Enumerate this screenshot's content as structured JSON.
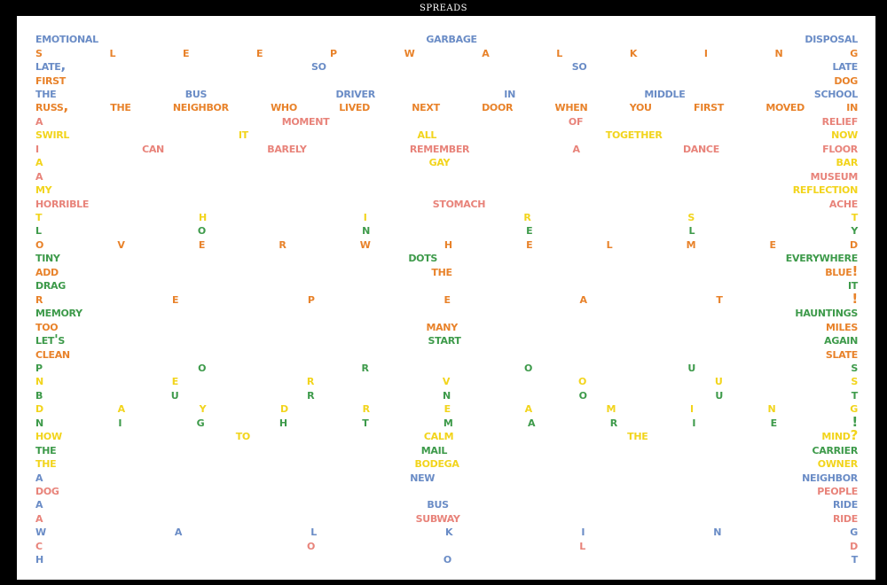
{
  "title": "SPREADS",
  "palette": {
    "blue": "#6a8cc6",
    "orange": "#e8822a",
    "salmon": "#e8837a",
    "yellow": "#f2d41c",
    "green": "#3d9a4a"
  },
  "lines": [
    {
      "color": "blue",
      "words": [
        "emotional",
        "garbage",
        "disposal"
      ]
    },
    {
      "color": "orange",
      "words": [
        "S",
        "L",
        "e",
        "e",
        "P",
        "W",
        "a",
        "L",
        "K",
        "I",
        "n",
        "G"
      ]
    },
    {
      "color": "blue",
      "words": [
        "LATE,",
        "SO",
        "SO",
        "LATE"
      ]
    },
    {
      "color": "orange",
      "words": [
        "FIRST",
        "DOG"
      ]
    },
    {
      "color": "blue",
      "words": [
        "THE",
        "BUS",
        "Driver",
        "In",
        "MIDDLE",
        "SCHOOL"
      ]
    },
    {
      "color": "orange",
      "words": [
        "RUSS,",
        "THE",
        "neighbor",
        "WHO",
        "LIVED",
        "NEXT",
        "DOOR",
        "WHEN",
        "YOU",
        "FIRST",
        "MOVED",
        "IN"
      ]
    },
    {
      "color": "salmon",
      "words": [
        "a",
        "moment",
        "OF",
        "relief"
      ]
    },
    {
      "color": "yellow",
      "words": [
        "SWIRL",
        "IT",
        "ALL",
        "TOGETHER",
        "NOW"
      ]
    },
    {
      "color": "salmon",
      "words": [
        "I",
        "can",
        "BARELY",
        "remember",
        "a",
        "Dance",
        "FLOOR"
      ]
    },
    {
      "color": "yellow",
      "words": [
        "a",
        "GAY",
        "BAR"
      ]
    },
    {
      "color": "salmon",
      "words": [
        "a",
        "museum"
      ]
    },
    {
      "color": "yellow",
      "words": [
        "MY",
        "reflection"
      ]
    },
    {
      "color": "salmon",
      "words": [
        "HORRIBLE",
        "STOMACH",
        "ACHE"
      ]
    },
    {
      "color": "yellow",
      "words": [
        "T",
        "H",
        "I",
        "R",
        "S",
        "T"
      ]
    },
    {
      "color": "green",
      "words": [
        "L",
        "O",
        "N",
        "E",
        "L",
        "Y"
      ]
    },
    {
      "color": "orange",
      "words": [
        "O",
        "V",
        "e",
        "R",
        "W",
        "H",
        "E",
        "L",
        "M",
        "e",
        "D"
      ]
    },
    {
      "color": "green",
      "words": [
        "TINY",
        "DOTS",
        "everywhere"
      ]
    },
    {
      "color": "orange",
      "words": [
        "ADD",
        "THE",
        "BLUE!"
      ]
    },
    {
      "color": "green",
      "words": [
        "DRAG",
        "IT"
      ]
    },
    {
      "color": "orange",
      "words": [
        "R",
        "e",
        "P",
        "E",
        "a",
        "T",
        "!"
      ]
    },
    {
      "color": "green",
      "words": [
        "memory",
        "HAUNTINGS"
      ]
    },
    {
      "color": "orange",
      "words": [
        "TOO",
        "many",
        "miles"
      ]
    },
    {
      "color": "green",
      "words": [
        "LET'S",
        "START",
        "again"
      ]
    },
    {
      "color": "orange",
      "words": [
        "CLEAN",
        "SLATE"
      ]
    },
    {
      "color": "green",
      "words": [
        "P",
        "O",
        "R",
        "O",
        "U",
        "S"
      ]
    },
    {
      "color": "yellow",
      "words": [
        "n",
        "e",
        "r",
        "V",
        "O",
        "U",
        "S"
      ]
    },
    {
      "color": "green",
      "words": [
        "B",
        "U",
        "R",
        "N",
        "O",
        "U",
        "T"
      ]
    },
    {
      "color": "yellow",
      "words": [
        "D",
        "a",
        "Y",
        "D",
        "R",
        "E",
        "a",
        "M",
        "I",
        "N",
        "G"
      ]
    },
    {
      "color": "green",
      "words": [
        "N",
        "I",
        "G",
        "H",
        "T",
        "M",
        "a",
        "R",
        "I",
        "E",
        "!"
      ]
    },
    {
      "color": "yellow",
      "words": [
        "HOW",
        "TO",
        "Calm",
        "THE",
        "mind?"
      ]
    },
    {
      "color": "green",
      "words": [
        "THE",
        "mail",
        "carrier"
      ]
    },
    {
      "color": "yellow",
      "words": [
        "THE",
        "BODEGA",
        "owner"
      ]
    },
    {
      "color": "blue",
      "words": [
        "a",
        "new",
        "neighbor"
      ]
    },
    {
      "color": "salmon",
      "words": [
        "DOG",
        "PEOPLE"
      ]
    },
    {
      "color": "blue",
      "words": [
        "a",
        "BUS",
        "ride"
      ]
    },
    {
      "color": "salmon",
      "words": [
        "a",
        "SUBWAY",
        "ride"
      ]
    },
    {
      "color": "blue",
      "words": [
        "W",
        "a",
        "L",
        "K",
        "I",
        "N",
        "G"
      ]
    },
    {
      "color": "salmon",
      "words": [
        "C",
        "O",
        "L",
        "D"
      ]
    },
    {
      "color": "blue",
      "words": [
        "H",
        "O",
        "T"
      ]
    }
  ]
}
